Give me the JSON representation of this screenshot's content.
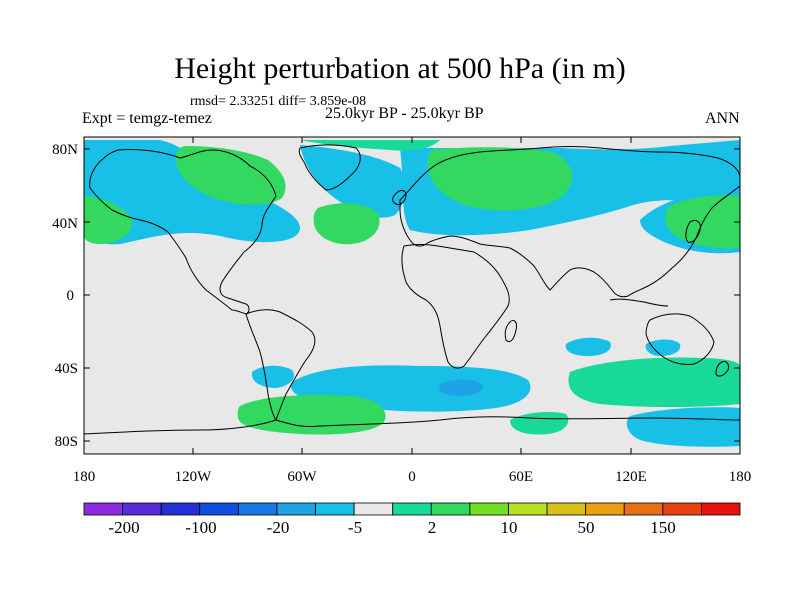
{
  "title": "Height perturbation at 500 hPa (in m)",
  "stats": "rmsd= 2.33251 diff= 3.859e-08",
  "left_label": "Expt = temgz-temez",
  "center_label": "25.0kyr BP - 25.0kyr BP",
  "right_label": "ANN",
  "axes": {
    "lat_ticks": [
      "80N",
      "40N",
      "0",
      "40S",
      "80S"
    ],
    "lon_ticks": [
      "180",
      "120W",
      "60W",
      "0",
      "60E",
      "120E",
      "180"
    ]
  },
  "colorbar": {
    "colors": [
      "#8b2be2",
      "#5a2bdc",
      "#2330d8",
      "#1050e0",
      "#1a78e6",
      "#20a2e6",
      "#18c0e8",
      "#e8e8e8",
      "#18d89a",
      "#32d860",
      "#70e020",
      "#b8e020",
      "#d8c018",
      "#e8a010",
      "#e87010",
      "#e84010",
      "#e81010"
    ],
    "labels": [
      "-200",
      "-100",
      "-20",
      "-5",
      "2",
      "10",
      "50",
      "150"
    ]
  },
  "colors": {
    "neutral": "#e8e8e8",
    "cyan_level": "#18c0e8",
    "light_blue_level": "#20a2e6",
    "light_green_level": "#18d89a",
    "green_level": "#32d860"
  }
}
